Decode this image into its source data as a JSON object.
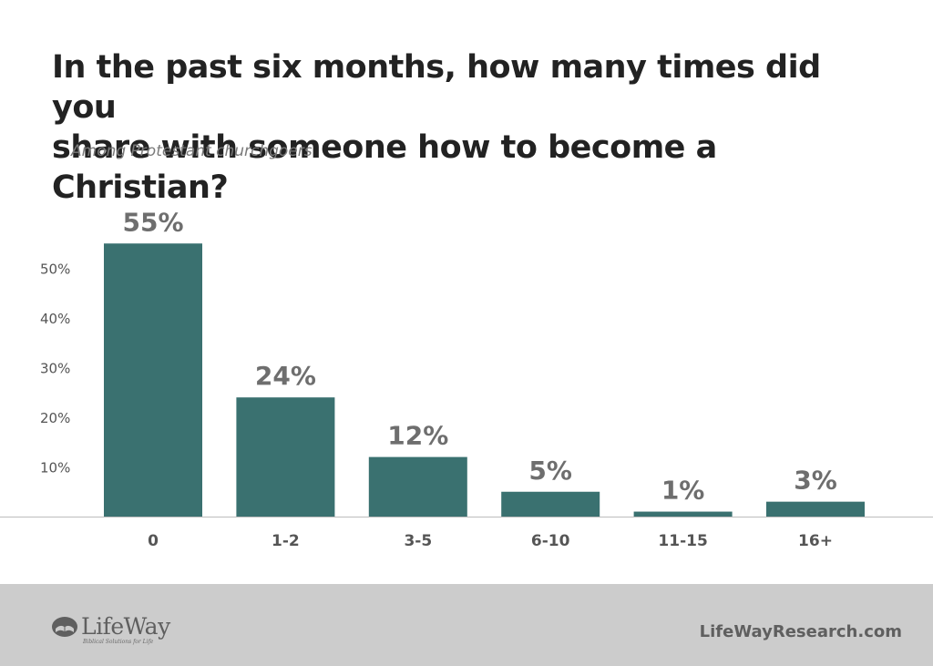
{
  "chart_data": {
    "type": "bar",
    "title_lines": [
      "In the past six months, how many times did you",
      "share with someone how to become a Christian?"
    ],
    "subtitle": "Among Protestant churchgoers",
    "categories": [
      "0",
      "1-2",
      "3-5",
      "6-10",
      "11-15",
      "16+"
    ],
    "values": [
      55,
      24,
      12,
      5,
      1,
      3
    ],
    "data_labels": [
      "55%",
      "24%",
      "12%",
      "5%",
      "1%",
      "3%"
    ],
    "y_ticks": [
      10,
      20,
      30,
      40,
      50
    ],
    "y_tick_labels": [
      "10%",
      "20%",
      "30%",
      "40%",
      "50%"
    ],
    "ylim": [
      0,
      55
    ],
    "xlabel": "",
    "ylabel": "",
    "grid": false,
    "colors": {
      "bar": "#3a7170",
      "data_label": "#6e6e6e",
      "tick_label": "#555555",
      "baseline": "#bdbdbd"
    }
  },
  "footer": {
    "logo_text": "LifeWay",
    "logo_tagline": "Biblical Solutions for Life",
    "website": "LifeWayResearch.com",
    "background": "#cccccc"
  }
}
